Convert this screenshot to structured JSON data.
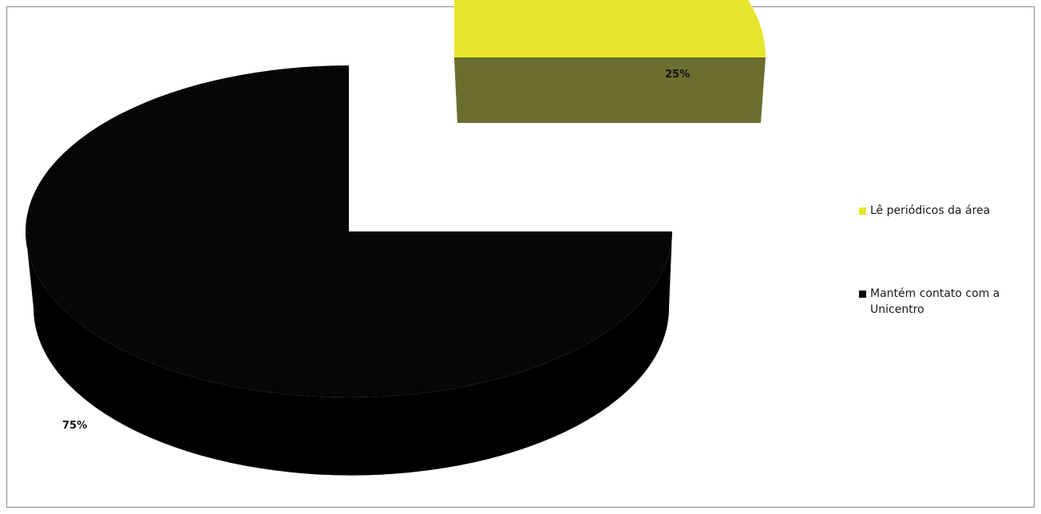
{
  "chart_data": {
    "type": "pie",
    "variant": "3d-exploded",
    "categories": [
      "Lê periódicos da área",
      "Mantém contato com a Unicentro"
    ],
    "values": [
      25,
      75
    ],
    "unit": "%",
    "data_labels": [
      "25%",
      "75%"
    ],
    "colors": {
      "Lê periódicos da área": {
        "top": "#e8e52f",
        "side": "#6b6d2e"
      },
      "Mantém contato com a Unicentro": {
        "top": "#050608",
        "side": "#000000"
      }
    },
    "legend_position": "right",
    "title": ""
  }
}
